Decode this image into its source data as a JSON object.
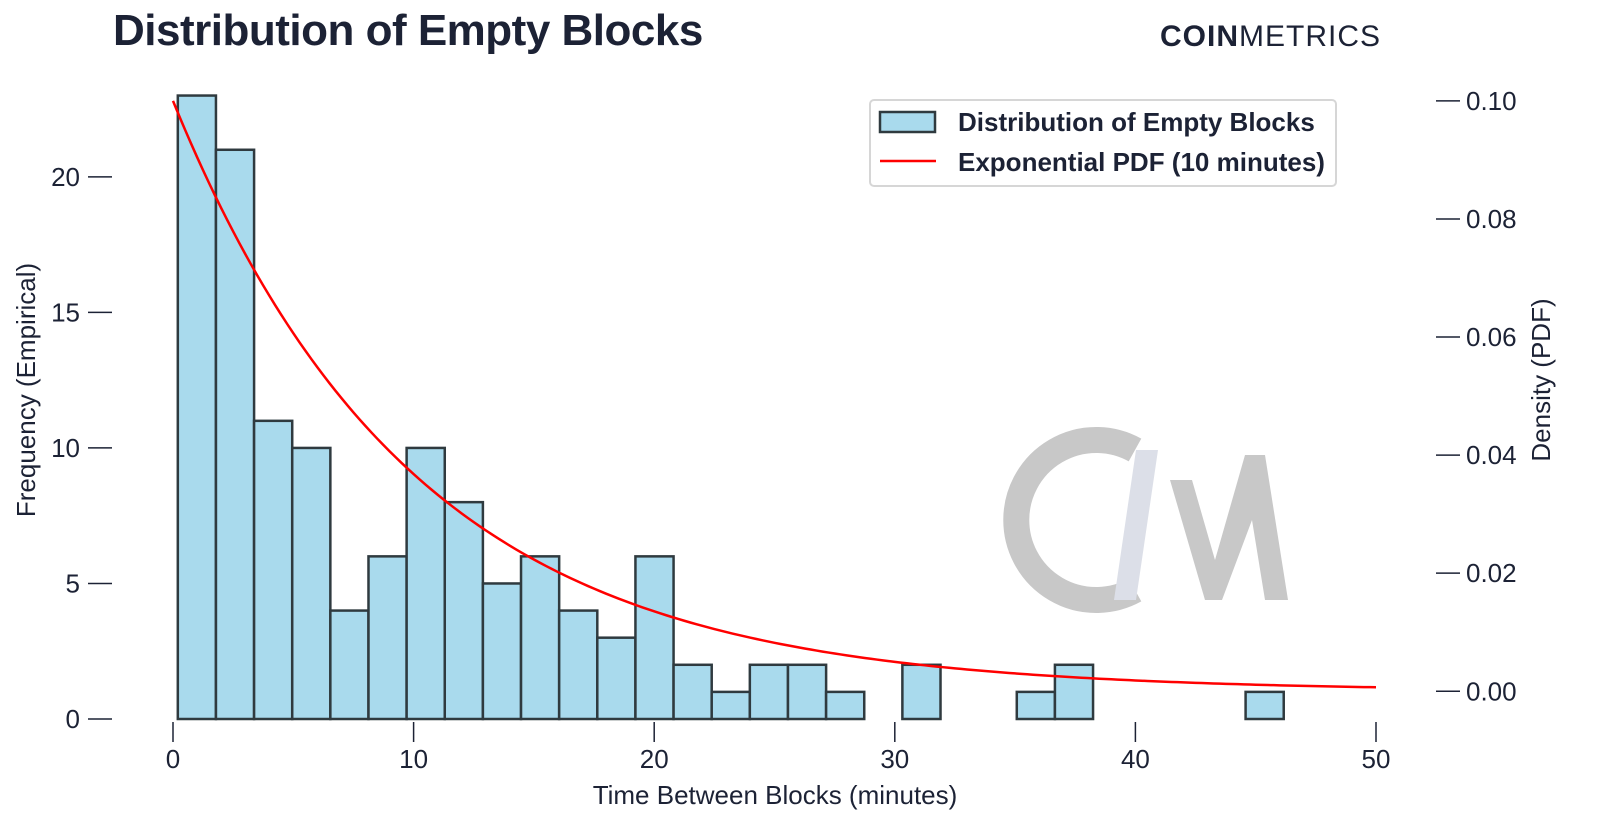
{
  "title": "Distribution of Empty Blocks",
  "brand": {
    "bold": "COIN",
    "regular": "METRICS"
  },
  "colors": {
    "bar_fill": "#a9daed",
    "bar_stroke": "#2f3a3f",
    "pdf_line": "#ff0000",
    "text": "#1c2235",
    "watermark_c": "#c8c8c8",
    "watermark_slash": "#dcdfe8"
  },
  "watermark_icon": "coinmetrics-cm-logo",
  "chart_data": {
    "type": "bar",
    "title": "Distribution of Empty Blocks",
    "xlabel": "Time Between Blocks (minutes)",
    "ylabel": "Frequency (Empirical)",
    "y2label": "Density (PDF)",
    "xlim": [
      0,
      50
    ],
    "ylim": [
      0,
      23.5
    ],
    "y2lim": [
      -0.0047,
      0.1032
    ],
    "xticks": [
      0,
      10,
      20,
      30,
      40,
      50
    ],
    "yticks": [
      0,
      5,
      10,
      15,
      20
    ],
    "y2ticks": [
      0.0,
      0.02,
      0.04,
      0.06,
      0.08,
      0.1
    ],
    "y2ticklabels": [
      "0.00",
      "0.02",
      "0.04",
      "0.06",
      "0.08",
      "0.10"
    ],
    "grid": false,
    "legend_position": "top-right",
    "histogram": {
      "name": "Distribution of Empty Blocks",
      "bin_start": 0.2,
      "bin_width": 1.585,
      "counts": [
        23,
        21,
        11,
        10,
        4,
        6,
        10,
        8,
        5,
        6,
        4,
        3,
        6,
        2,
        1,
        2,
        2,
        1,
        0,
        2,
        0,
        0,
        1,
        2,
        0,
        0,
        0,
        0,
        1
      ]
    },
    "pdf": {
      "name": "Exponential PDF (10 minutes)",
      "x_start": 0,
      "x_end": 50,
      "scale_minutes": 10
    }
  }
}
